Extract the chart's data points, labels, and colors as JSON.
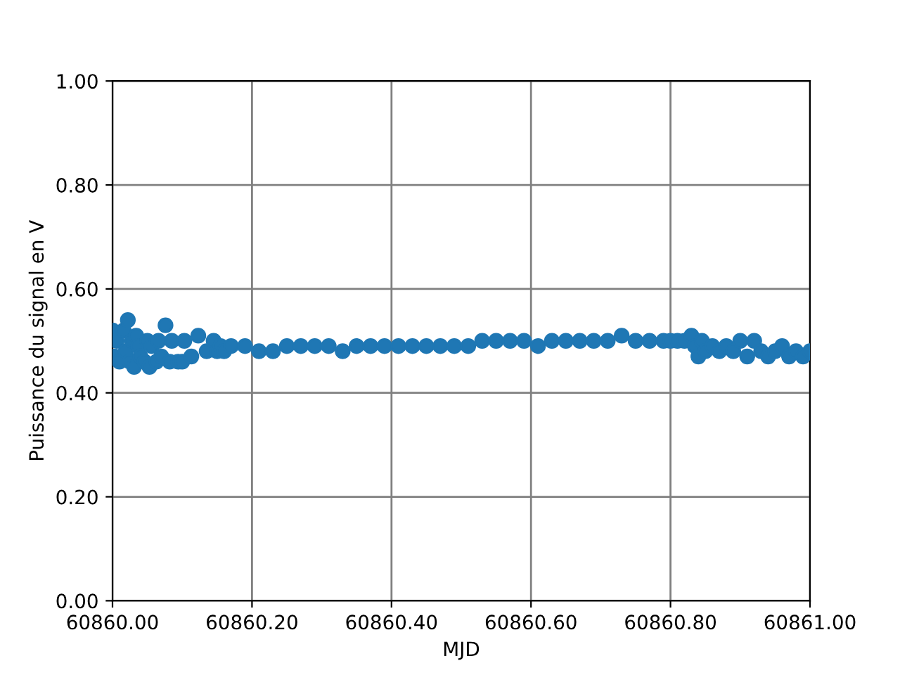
{
  "chart_data": {
    "type": "scatter",
    "xlabel": "MJD",
    "ylabel": "Puissance du signal en V",
    "x": [
      60860.0,
      60860.003,
      60860.006,
      60860.01,
      60860.016,
      60860.019,
      60860.022,
      60860.025,
      60860.028,
      60860.031,
      60860.034,
      60860.037,
      60860.04,
      60860.046,
      60860.05,
      60860.053,
      60860.056,
      60860.063,
      60860.066,
      60860.07,
      60860.076,
      60860.082,
      60860.085,
      60860.094,
      60860.1,
      60860.103,
      60860.113,
      60860.123,
      60860.135,
      60860.145,
      60860.15,
      60860.155,
      60860.16,
      60860.17,
      60860.19,
      60860.21,
      60860.23,
      60860.25,
      60860.27,
      60860.29,
      60860.31,
      60860.33,
      60860.35,
      60860.37,
      60860.39,
      60860.41,
      60860.43,
      60860.45,
      60860.47,
      60860.49,
      60860.51,
      60860.53,
      60860.55,
      60860.57,
      60860.59,
      60860.61,
      60860.63,
      60860.65,
      60860.67,
      60860.69,
      60860.71,
      60860.73,
      60860.75,
      60860.77,
      60860.79,
      60860.8,
      60860.81,
      60860.82,
      60860.83,
      60860.835,
      60860.84,
      60860.845,
      60860.85,
      60860.86,
      60860.87,
      60860.88,
      60860.89,
      60860.9,
      60860.91,
      60860.92,
      60860.93,
      60860.94,
      60860.95,
      60860.96,
      60860.97,
      60860.98,
      60860.99,
      60861.0
    ],
    "series": [
      {
        "color": "#1f77b4",
        "values": [
          0.52,
          0.47,
          0.5,
          0.46,
          0.52,
          0.48,
          0.54,
          0.46,
          0.5,
          0.45,
          0.51,
          0.49,
          0.47,
          0.46,
          0.5,
          0.45,
          0.49,
          0.46,
          0.5,
          0.47,
          0.53,
          0.46,
          0.5,
          0.46,
          0.46,
          0.5,
          0.47,
          0.51,
          0.48,
          0.5,
          0.48,
          0.49,
          0.48,
          0.49,
          0.49,
          0.48,
          0.48,
          0.49,
          0.49,
          0.49,
          0.49,
          0.48,
          0.49,
          0.49,
          0.49,
          0.49,
          0.49,
          0.49,
          0.49,
          0.49,
          0.49,
          0.5,
          0.5,
          0.5,
          0.5,
          0.49,
          0.5,
          0.5,
          0.5,
          0.5,
          0.5,
          0.51,
          0.5,
          0.5,
          0.5,
          0.5,
          0.5,
          0.5,
          0.51,
          0.49,
          0.47,
          0.5,
          0.48,
          0.49,
          0.48,
          0.49,
          0.48,
          0.5,
          0.47,
          0.5,
          0.48,
          0.47,
          0.48,
          0.49,
          0.47,
          0.48,
          0.47,
          0.48
        ]
      }
    ],
    "marker": "circle",
    "grid": true,
    "xlim": [
      60860.0,
      60861.0
    ],
    "xticks": [
      {
        "value": 60860.0,
        "label": "60860.00"
      },
      {
        "value": 60860.2,
        "label": "60860.20"
      },
      {
        "value": 60860.4,
        "label": "60860.40"
      },
      {
        "value": 60860.6,
        "label": "60860.60"
      },
      {
        "value": 60860.8,
        "label": "60860.80"
      },
      {
        "value": 60861.0,
        "label": "60861.00"
      }
    ],
    "ylim": [
      0,
      1
    ],
    "yticks": [
      {
        "value": 0,
        "label": "0.00"
      },
      {
        "value": 0.2,
        "label": "0.20"
      },
      {
        "value": 0.4,
        "label": "0.40"
      },
      {
        "value": 0.6,
        "label": "0.60"
      },
      {
        "value": 0.8,
        "label": "0.80"
      },
      {
        "value": 1.0,
        "label": "1.00"
      }
    ]
  }
}
